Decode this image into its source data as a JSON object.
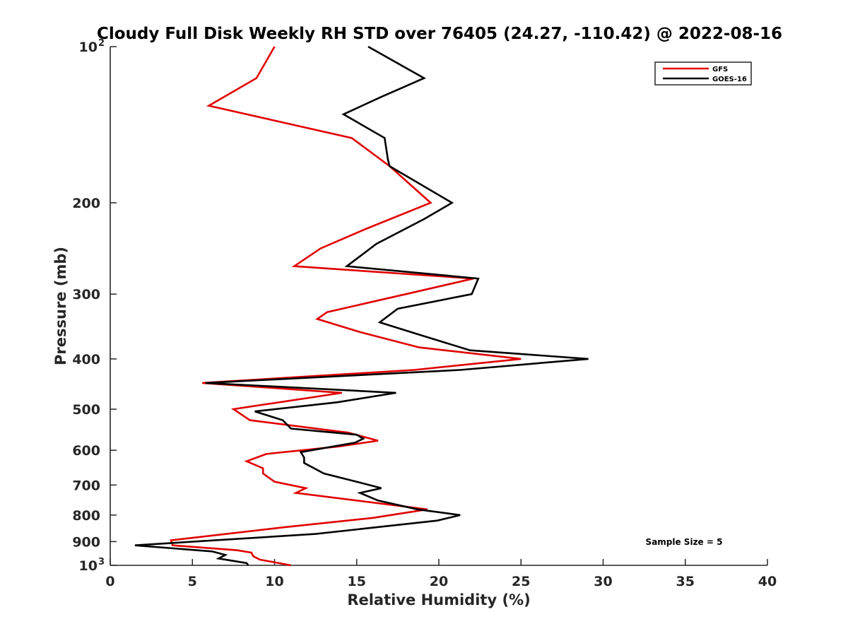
{
  "chart_data": {
    "type": "line",
    "title": "Cloudy Full Disk Weekly RH STD over 76405 (24.27, -110.42) @ 2022-08-16",
    "xlabel": "Relative Humidity (%)",
    "ylabel": "Pressure (mb)",
    "xlim": [
      0,
      40
    ],
    "ylim": [
      100,
      1000
    ],
    "y_scale": "log",
    "y_reversed": true,
    "x_ticks": [
      {
        "value": 0,
        "label": "0"
      },
      {
        "value": 5,
        "label": "5"
      },
      {
        "value": 10,
        "label": "10"
      },
      {
        "value": 15,
        "label": "15"
      },
      {
        "value": 20,
        "label": "20"
      },
      {
        "value": 25,
        "label": "25"
      },
      {
        "value": 30,
        "label": "30"
      },
      {
        "value": 35,
        "label": "35"
      },
      {
        "value": 40,
        "label": "40"
      }
    ],
    "y_ticks": [
      {
        "value": 100,
        "label": "10",
        "sup": "2"
      },
      {
        "value": 200,
        "label": "200"
      },
      {
        "value": 300,
        "label": "300"
      },
      {
        "value": 400,
        "label": "400"
      },
      {
        "value": 500,
        "label": "500"
      },
      {
        "value": 600,
        "label": "600"
      },
      {
        "value": 700,
        "label": "700"
      },
      {
        "value": 800,
        "label": "800"
      },
      {
        "value": 900,
        "label": "900"
      },
      {
        "value": 1000,
        "label": "10",
        "sup": "3"
      }
    ],
    "grid": false,
    "legend_position": "top-right",
    "annotation": "Sample Size = 5",
    "series": [
      {
        "name": "GFS",
        "color": "#e00000",
        "points": [
          [
            10.0,
            100
          ],
          [
            8.9,
            115
          ],
          [
            6.0,
            130
          ],
          [
            14.7,
            150
          ],
          [
            17.0,
            170
          ],
          [
            19.5,
            200
          ],
          [
            15.5,
            225
          ],
          [
            12.8,
            245
          ],
          [
            11.2,
            265
          ],
          [
            22.1,
            280
          ],
          [
            18.0,
            300
          ],
          [
            13.2,
            325
          ],
          [
            12.6,
            335
          ],
          [
            15.2,
            355
          ],
          [
            18.8,
            380
          ],
          [
            25.0,
            400
          ],
          [
            18.5,
            420
          ],
          [
            5.6,
            445
          ],
          [
            14.1,
            465
          ],
          [
            7.5,
            500
          ],
          [
            8.5,
            525
          ],
          [
            14.5,
            555
          ],
          [
            16.3,
            575
          ],
          [
            13.9,
            590
          ],
          [
            9.5,
            610
          ],
          [
            8.3,
            630
          ],
          [
            9.3,
            650
          ],
          [
            9.3,
            665
          ],
          [
            10.0,
            690
          ],
          [
            11.9,
            710
          ],
          [
            11.3,
            725
          ],
          [
            19.3,
            780
          ],
          [
            16.0,
            810
          ],
          [
            10.5,
            845
          ],
          [
            3.7,
            895
          ],
          [
            3.8,
            915
          ],
          [
            7.7,
            935
          ],
          [
            8.6,
            945
          ],
          [
            8.7,
            960
          ],
          [
            9.1,
            975
          ],
          [
            11.0,
            1000
          ]
        ]
      },
      {
        "name": "GOES-16",
        "color": "#000000",
        "points": [
          [
            15.7,
            100
          ],
          [
            19.1,
            115
          ],
          [
            16.5,
            125
          ],
          [
            14.2,
            135
          ],
          [
            16.7,
            150
          ],
          [
            16.9,
            165
          ],
          [
            17.0,
            170
          ],
          [
            20.8,
            200
          ],
          [
            19.1,
            215
          ],
          [
            16.2,
            240
          ],
          [
            14.4,
            265
          ],
          [
            22.4,
            280
          ],
          [
            22.0,
            300
          ],
          [
            17.5,
            320
          ],
          [
            16.4,
            340
          ],
          [
            18.9,
            360
          ],
          [
            21.9,
            385
          ],
          [
            29.1,
            400
          ],
          [
            21.3,
            420
          ],
          [
            5.8,
            445
          ],
          [
            17.4,
            465
          ],
          [
            13.8,
            485
          ],
          [
            8.8,
            505
          ],
          [
            10.5,
            525
          ],
          [
            11.0,
            545
          ],
          [
            15.0,
            560
          ],
          [
            15.4,
            570
          ],
          [
            14.9,
            580
          ],
          [
            11.6,
            605
          ],
          [
            11.8,
            620
          ],
          [
            11.8,
            635
          ],
          [
            13.0,
            665
          ],
          [
            15.0,
            690
          ],
          [
            16.5,
            710
          ],
          [
            15.2,
            725
          ],
          [
            16.3,
            750
          ],
          [
            18.7,
            780
          ],
          [
            21.3,
            800
          ],
          [
            19.9,
            820
          ],
          [
            12.5,
            870
          ],
          [
            1.5,
            915
          ],
          [
            6.2,
            940
          ],
          [
            7.0,
            955
          ],
          [
            6.6,
            970
          ],
          [
            8.3,
            990
          ],
          [
            8.4,
            1000
          ]
        ]
      }
    ]
  }
}
